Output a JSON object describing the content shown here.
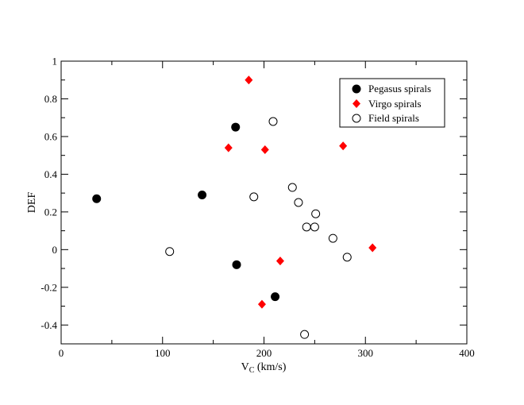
{
  "chart_data": {
    "type": "scatter",
    "title": "",
    "xlabel_main": "V",
    "xlabel_sub": "C",
    "xlabel_rest": " (km/s)",
    "ylabel": "DEF",
    "xlim": [
      0,
      400
    ],
    "ylim": [
      -0.5,
      1
    ],
    "x_ticks": [
      0,
      100,
      200,
      300,
      400
    ],
    "x_tick_labels": [
      "0",
      "100",
      "200",
      "300",
      "400"
    ],
    "y_ticks": [
      -0.4,
      -0.2,
      0,
      0.2,
      0.4,
      0.6,
      0.8,
      1
    ],
    "y_tick_labels": [
      "-0.4",
      "-0.2",
      "0",
      "0.2",
      "0.4",
      "0.6",
      "0.8",
      "1"
    ],
    "grid": false,
    "legend_position": "top-right",
    "series": [
      {
        "name": "Pegasus spirals",
        "marker": "filled-circle",
        "color": "#000000",
        "points": [
          {
            "x": 35,
            "y": 0.27
          },
          {
            "x": 139,
            "y": 0.29
          },
          {
            "x": 172,
            "y": 0.65
          },
          {
            "x": 173,
            "y": -0.08
          },
          {
            "x": 211,
            "y": -0.25
          }
        ]
      },
      {
        "name": "Virgo spirals",
        "marker": "diamond",
        "color": "#ff0000",
        "points": [
          {
            "x": 185,
            "y": 0.9
          },
          {
            "x": 165,
            "y": 0.54
          },
          {
            "x": 201,
            "y": 0.53
          },
          {
            "x": 278,
            "y": 0.55
          },
          {
            "x": 216,
            "y": -0.06
          },
          {
            "x": 307,
            "y": 0.01
          },
          {
            "x": 198,
            "y": -0.29
          }
        ]
      },
      {
        "name": "Field spirals",
        "marker": "open-circle",
        "color": "#000000",
        "points": [
          {
            "x": 107,
            "y": -0.01
          },
          {
            "x": 190,
            "y": 0.28
          },
          {
            "x": 209,
            "y": 0.68
          },
          {
            "x": 228,
            "y": 0.33
          },
          {
            "x": 234,
            "y": 0.25
          },
          {
            "x": 251,
            "y": 0.19
          },
          {
            "x": 242,
            "y": 0.12
          },
          {
            "x": 250,
            "y": 0.12
          },
          {
            "x": 268,
            "y": 0.06
          },
          {
            "x": 282,
            "y": -0.04
          },
          {
            "x": 240,
            "y": -0.45
          }
        ]
      }
    ]
  }
}
